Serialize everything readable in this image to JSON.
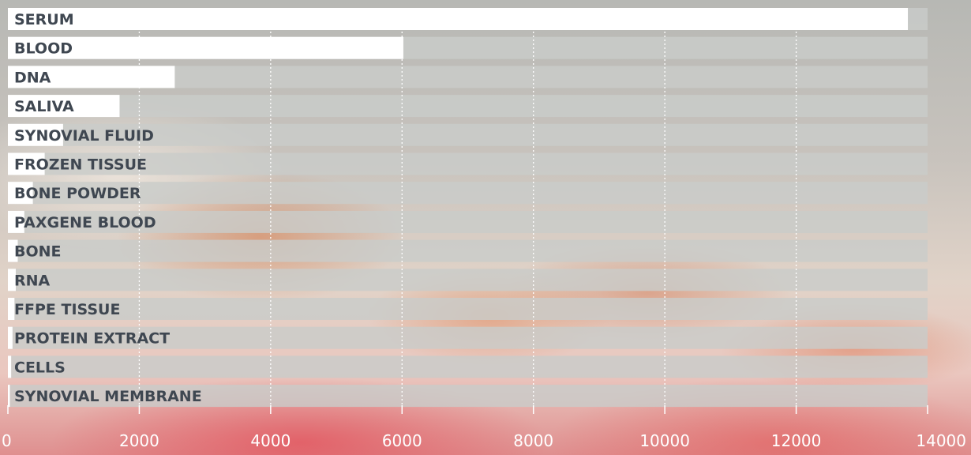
{
  "chart_data": {
    "type": "bar",
    "orientation": "horizontal",
    "categories": [
      "SERUM",
      "BLOOD",
      "DNA",
      "SALIVA",
      "SYNOVIAL FLUID",
      "FROZEN TISSUE",
      "BONE POWDER",
      "PAXGENE BLOOD",
      "BONE",
      "RNA",
      "FFPE TISSUE",
      "PROTEIN EXTRACT",
      "CELLS",
      "SYNOVIAL MEMBRANE"
    ],
    "values": [
      13700,
      6020,
      2540,
      1700,
      840,
      560,
      380,
      250,
      150,
      120,
      100,
      70,
      50,
      30
    ],
    "xlim": [
      0,
      14000
    ],
    "xticks": [
      "0",
      "2000",
      "4000",
      "6000",
      "8000",
      "10000",
      "12000",
      "14000"
    ],
    "grid": true,
    "title": "",
    "xlabel": "",
    "ylabel": "",
    "colors": {
      "bar": "#ffffff",
      "track": "#c9ccc9",
      "label": "#3f4751",
      "tick": "#ffffff"
    }
  }
}
